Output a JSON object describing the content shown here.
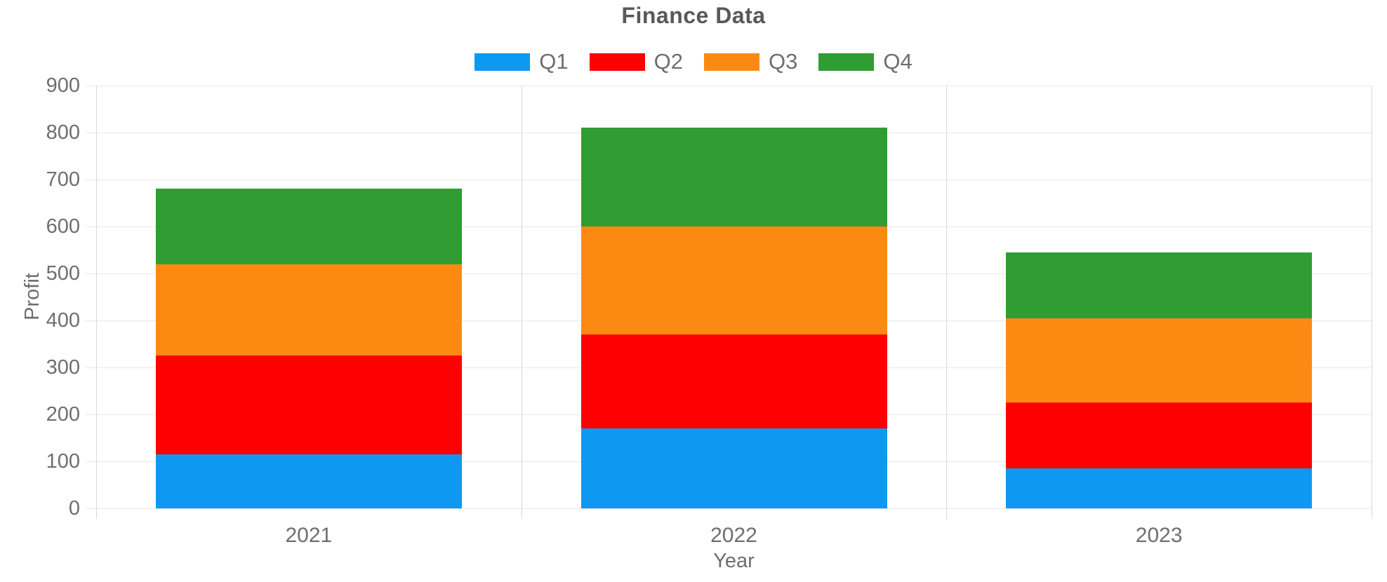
{
  "title": "Finance Data",
  "colors": {
    "q1_blue": "#0d99f2",
    "q2_red": "#fe0000",
    "q3_orange": "#fc8a12",
    "q4_green": "#2f9d33",
    "grid_line": "#e8e8e8",
    "axis_line": "#d8d8d8",
    "tick_text": "#6d6e71",
    "title_text": "#58595b"
  },
  "chart_data": {
    "type": "bar",
    "stacked": true,
    "title": "Finance Data",
    "xlabel": "Year",
    "ylabel": "Profit",
    "categories": [
      "2021",
      "2022",
      "2023"
    ],
    "series": [
      {
        "name": "Q1",
        "color": "#0d99f2",
        "values": [
          115,
          170,
          85
        ]
      },
      {
        "name": "Q2",
        "color": "#fe0000",
        "values": [
          210,
          200,
          140
        ]
      },
      {
        "name": "Q3",
        "color": "#fc8a12",
        "values": [
          195,
          230,
          180
        ]
      },
      {
        "name": "Q4",
        "color": "#2f9d33",
        "values": [
          160,
          210,
          140
        ]
      }
    ],
    "stack_totals": [
      680,
      810,
      545
    ],
    "cumulative_tops": {
      "2021": [
        115,
        325,
        520,
        680
      ],
      "2022": [
        170,
        370,
        600,
        810
      ],
      "2023": [
        85,
        225,
        405,
        545
      ]
    },
    "ylim": [
      0,
      900
    ],
    "ytick_step": 100,
    "grid": true,
    "legend_position": "top"
  }
}
